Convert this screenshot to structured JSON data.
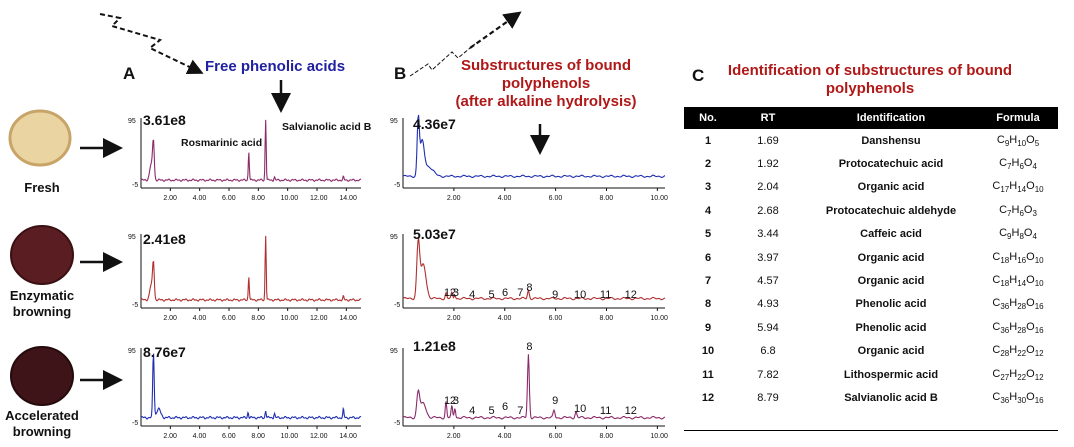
{
  "panels": {
    "a_letter": "A",
    "b_letter": "B",
    "c_letter": "C",
    "a_title": "Free phenolic acids",
    "b_title_lines": [
      "Substructures of bound",
      "polyphenols",
      "(after alkaline hydrolysis)"
    ],
    "c_title_lines": [
      "Identification of substructures of bound",
      "polyphenols"
    ]
  },
  "samples": [
    {
      "label_lines": [
        "Fresh"
      ],
      "a_max": "3.61e8",
      "b_max": "4.36e7"
    },
    {
      "label_lines": [
        "Enzymatic",
        "browning"
      ],
      "a_max": "2.41e8",
      "b_max": "5.03e7"
    },
    {
      "label_lines": [
        "Accelerated",
        "browning"
      ],
      "a_max": "8.76e7",
      "b_max": "1.21e8"
    }
  ],
  "annotations": {
    "rosmarinic": "Rosmarinic acid",
    "salvianolic": "Salvianolic acid B"
  },
  "axes": {
    "a_ticks": [
      "2.00",
      "4.00",
      "6.00",
      "8.00",
      "10.00",
      "12.00",
      "14.00"
    ],
    "b_ticks": [
      "2.00",
      "4.00",
      "6.00",
      "8.00",
      "10.00"
    ],
    "y_top": "95",
    "y_bottom": "-5"
  },
  "peak_numbers": [
    "1",
    "2",
    "3",
    "4",
    "5",
    "6",
    "7",
    "8",
    "9",
    "10",
    "11",
    "12"
  ],
  "colors": {
    "trace_a": "#8b2a6a",
    "trace_blue": "#1f2fb0",
    "trace_red": "#b03030",
    "title_blue": "#2020a0",
    "title_red": "#b01818"
  },
  "table": {
    "headers": [
      "No.",
      "RT",
      "Identification",
      "Formula"
    ],
    "rows": [
      {
        "no": "1",
        "rt": "1.69",
        "id": "Danshensu",
        "formula": "C9H10O5"
      },
      {
        "no": "2",
        "rt": "1.92",
        "id": "Protocatechuic  acid",
        "formula": "C7H6O4"
      },
      {
        "no": "3",
        "rt": "2.04",
        "id": "Organic acid",
        "formula": "C17H14O10"
      },
      {
        "no": "4",
        "rt": "2.68",
        "id": "Protocatechuic  aldehyde",
        "formula": "C7H6O3"
      },
      {
        "no": "5",
        "rt": "3.44",
        "id": "Caffeic acid",
        "formula": "C9H8O4"
      },
      {
        "no": "6",
        "rt": "3.97",
        "id": "Organic acid",
        "formula": "C18H16O10"
      },
      {
        "no": "7",
        "rt": "4.57",
        "id": "Organic acid",
        "formula": "C18H14O10"
      },
      {
        "no": "8",
        "rt": "4.93",
        "id": "Phenolic acid",
        "formula": "C36H28O16"
      },
      {
        "no": "9",
        "rt": "5.94",
        "id": "Phenolic acid",
        "formula": "C36H28O16"
      },
      {
        "no": "10",
        "rt": "6.8",
        "id": "Organic acid",
        "formula": "C28H22O12"
      },
      {
        "no": "11",
        "rt": "7.82",
        "id": "Lithospermic acid",
        "formula": "C27H22O12"
      },
      {
        "no": "12",
        "rt": "8.79",
        "id": "Salvianolic acid B",
        "formula": "C36H30O16"
      }
    ]
  }
}
